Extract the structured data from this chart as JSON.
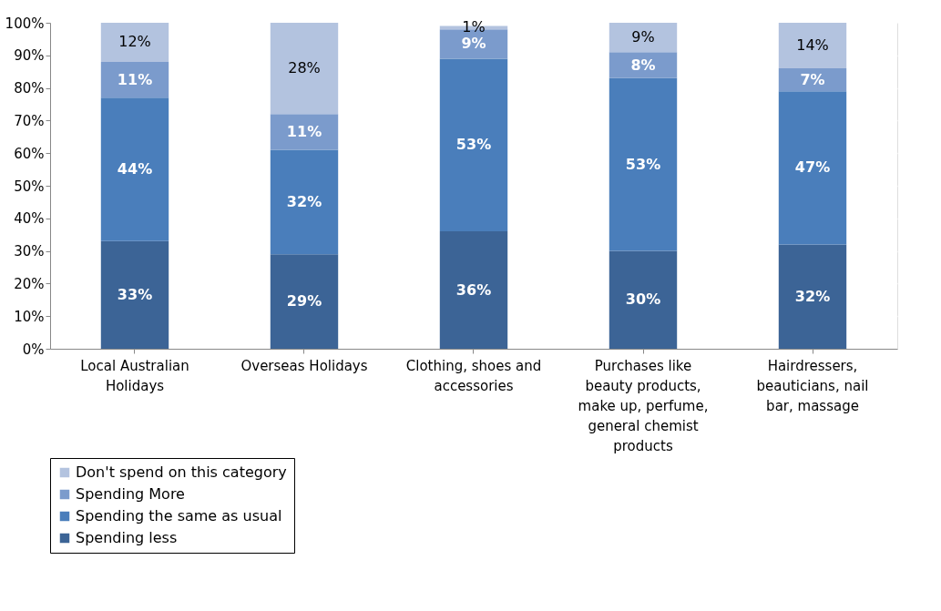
{
  "chart_data": {
    "type": "bar",
    "stacked": true,
    "grid": "y",
    "legend": "bottom",
    "categories": [
      "Local Australian Holidays",
      "Overseas Holidays",
      "Clothing, shoes and accessories",
      "Purchases like beauty products, make up, perfume, general chemist products",
      "Hairdressers, beauticians, nail bar, massage"
    ],
    "series": [
      {
        "name": "Spending less",
        "color": "#3c6496",
        "values": [
          33,
          29,
          36,
          30,
          32
        ],
        "value_labels": [
          "33%",
          "29%",
          "36%",
          "30%",
          "32%"
        ]
      },
      {
        "name": "Spending the same as usual",
        "color": "#4a7ebb",
        "values": [
          44,
          32,
          53,
          53,
          47
        ],
        "value_labels": [
          "44%",
          "32%",
          "53%",
          "53%",
          "47%"
        ]
      },
      {
        "name": "Spending More",
        "color": "#7b9bcc",
        "values": [
          11,
          11,
          9,
          8,
          7
        ],
        "value_labels": [
          "11%",
          "11%",
          "9%",
          "8%",
          "7%"
        ]
      },
      {
        "name": "Don't spend on this category",
        "color": "#b3c3df",
        "values": [
          12,
          28,
          1,
          9,
          14
        ],
        "value_labels": [
          "12%",
          "28%",
          "1%",
          "9%",
          "14%"
        ]
      }
    ],
    "ylim": [
      0,
      100
    ],
    "yticks": [
      {
        "value": 0,
        "label": "0%"
      },
      {
        "value": 10,
        "label": "10%"
      },
      {
        "value": 20,
        "label": "20%"
      },
      {
        "value": 30,
        "label": "30%"
      },
      {
        "value": 40,
        "label": "40%"
      },
      {
        "value": 50,
        "label": "50%"
      },
      {
        "value": 60,
        "label": "60%"
      },
      {
        "value": 70,
        "label": "70%"
      },
      {
        "value": 80,
        "label": "80%"
      },
      {
        "value": 90,
        "label": "90%"
      },
      {
        "value": 100,
        "label": "100%"
      }
    ]
  }
}
